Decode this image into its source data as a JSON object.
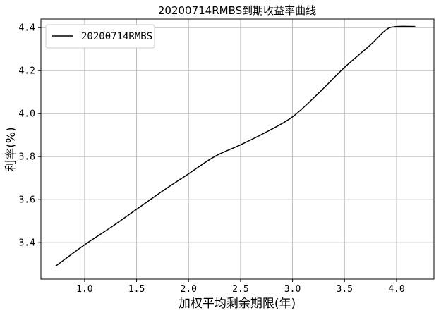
{
  "chart_data": {
    "type": "line",
    "title": "20200714RMBS到期收益率曲线",
    "xlabel": "加权平均剩余期限(年)",
    "ylabel": "利率(%)",
    "xlim": [
      0.58,
      4.36
    ],
    "ylim": [
      3.23,
      4.44
    ],
    "xticks": [
      1.0,
      1.5,
      2.0,
      2.5,
      3.0,
      3.5,
      4.0
    ],
    "xtick_labels": [
      "1.0",
      "1.5",
      "2.0",
      "2.5",
      "3.0",
      "3.5",
      "4.0"
    ],
    "yticks": [
      3.4,
      3.6,
      3.8,
      4.0,
      4.2,
      4.4
    ],
    "ytick_labels": [
      "3.4",
      "3.6",
      "3.8",
      "4.0",
      "4.2",
      "4.4"
    ],
    "grid": true,
    "legend_position": "top-left",
    "series": [
      {
        "name": "20200714RMBS",
        "color": "#000000",
        "x": [
          0.72,
          1.0,
          1.25,
          1.5,
          1.75,
          2.0,
          2.25,
          2.5,
          2.75,
          3.0,
          3.25,
          3.5,
          3.75,
          3.9,
          4.0,
          4.18
        ],
        "y": [
          3.29,
          3.39,
          3.47,
          3.555,
          3.64,
          3.72,
          3.8,
          3.855,
          3.915,
          3.985,
          4.095,
          4.215,
          4.32,
          4.39,
          4.405,
          4.405
        ]
      }
    ]
  }
}
